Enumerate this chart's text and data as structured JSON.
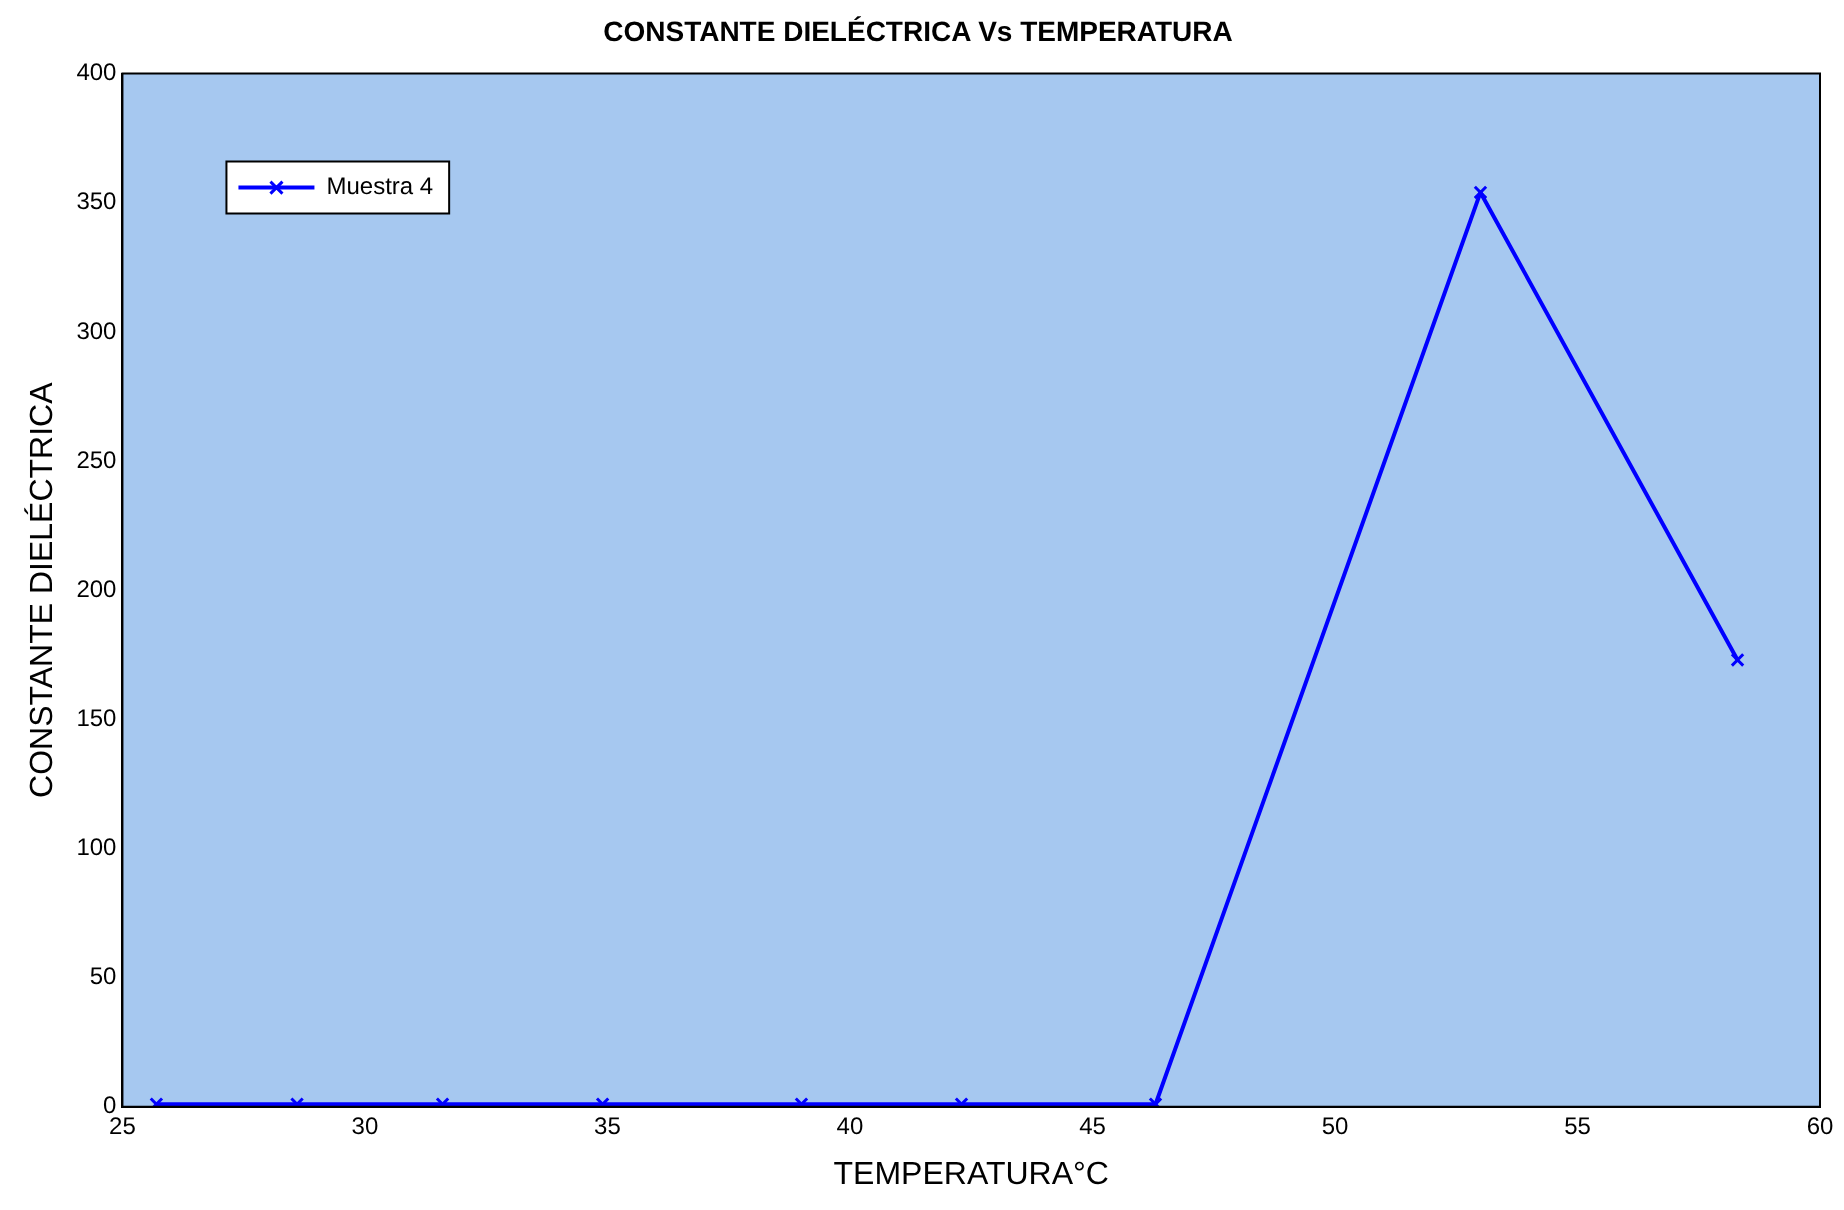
{
  "chart_data": {
    "type": "line",
    "title": "CONSTANTE DIELÉCTRICA Vs TEMPERATURA",
    "xlabel": "TEMPERATURA°C",
    "ylabel": "CONSTANTE DIELÉCTRICA",
    "x": [
      25.7,
      28.6,
      31.6,
      34.9,
      39.0,
      42.3,
      46.3,
      53.0,
      58.3
    ],
    "series": [
      {
        "name": "Muestra 4",
        "color": "#0000ff",
        "values": [
          1,
          1,
          1,
          1,
          1,
          1,
          1,
          354,
          173
        ]
      }
    ],
    "xlim": [
      25,
      60
    ],
    "xticks": [
      25,
      30,
      35,
      40,
      45,
      50,
      55,
      60
    ],
    "ylim": [
      0,
      400
    ],
    "yticks": [
      0,
      50,
      100,
      150,
      200,
      250,
      300,
      350,
      400
    ],
    "grid": false,
    "legend": "top left",
    "marker": "cross",
    "line_style": "solid"
  }
}
